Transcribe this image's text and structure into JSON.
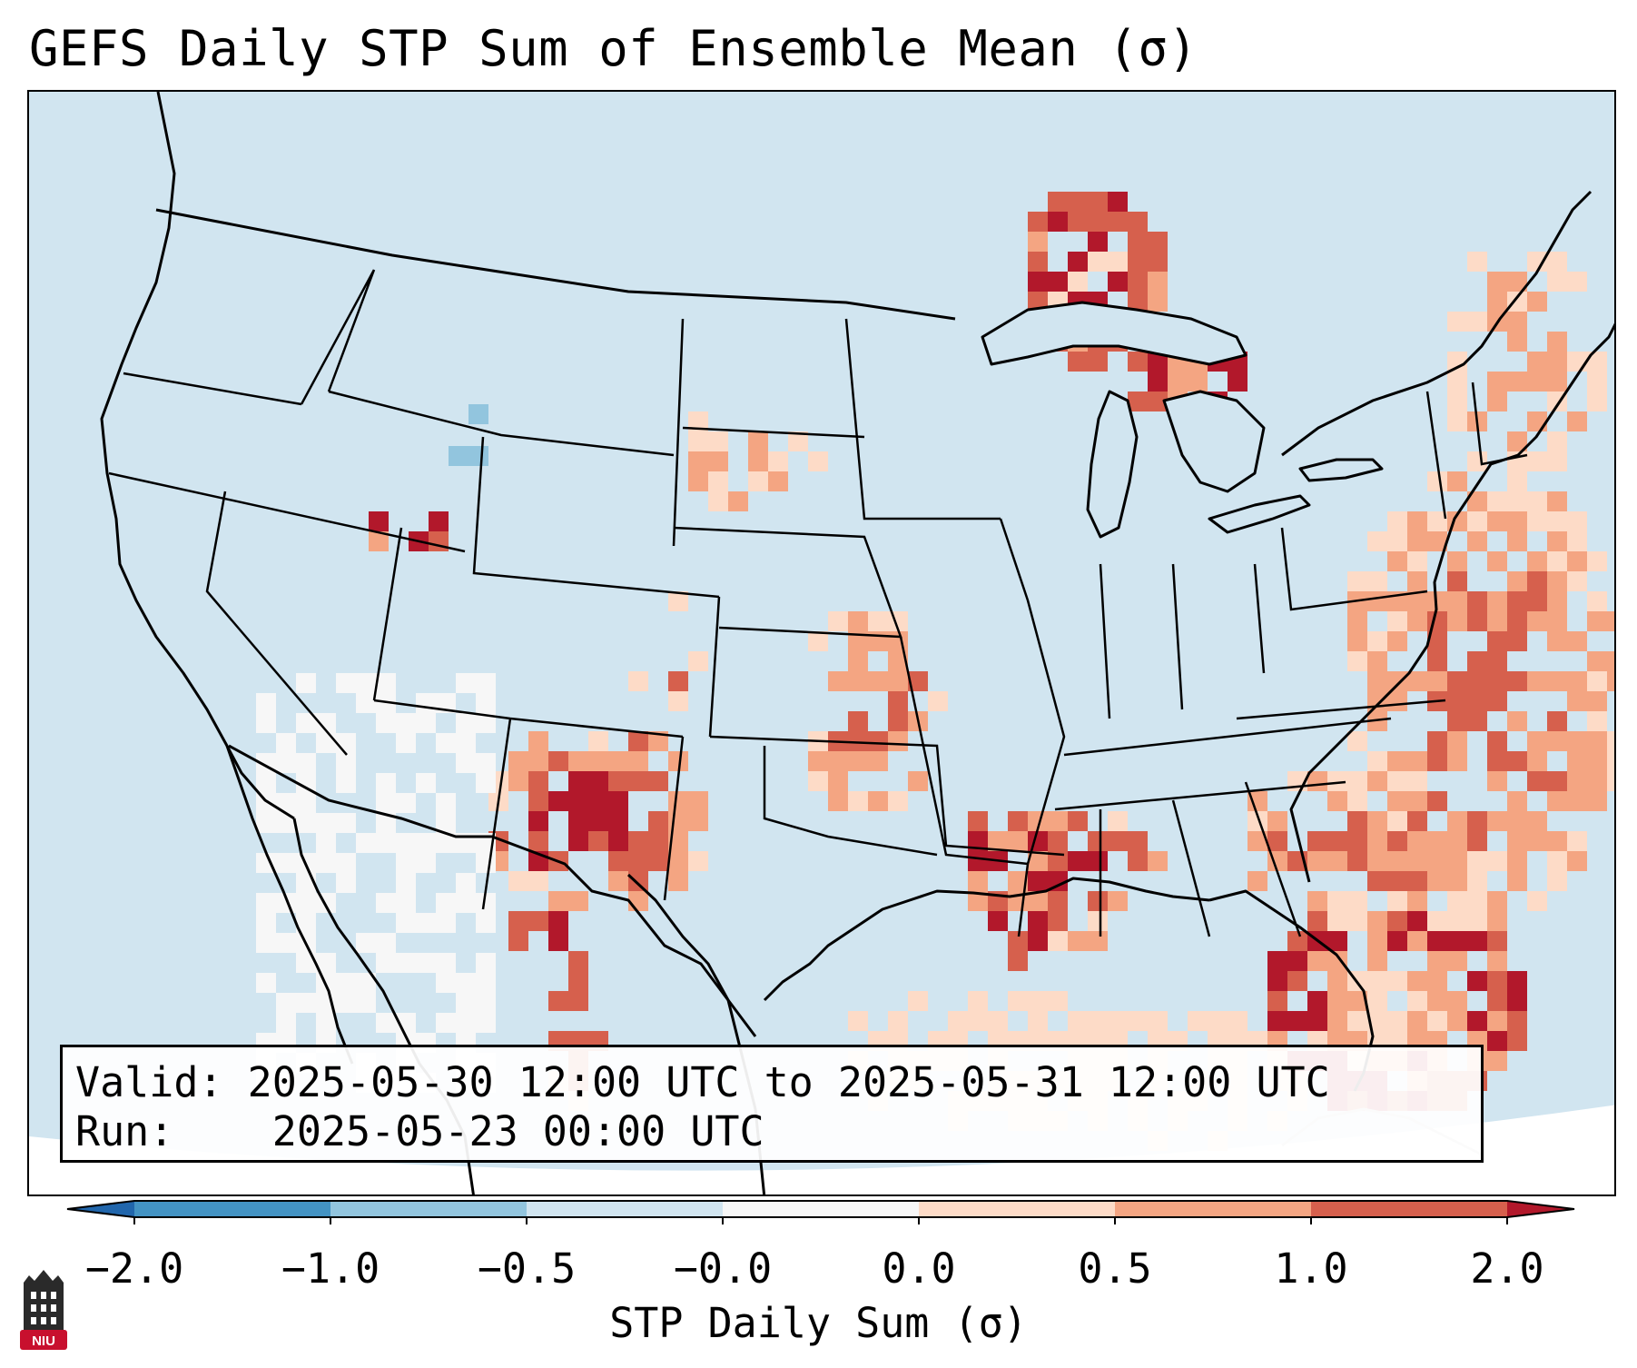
{
  "title": "GEFS Daily STP Sum of Ensemble Mean (σ)",
  "info": {
    "valid_label": "Valid:",
    "valid_text": "2025-05-30 12:00 UTC to 2025-05-31 12:00 UTC",
    "run_label": "Run:",
    "run_text": "2025-05-23 00:00 UTC"
  },
  "colorbar": {
    "label": "STP Daily Sum (σ)",
    "ticks": [
      "−2.0",
      "−1.0",
      "−0.5",
      "−0.0",
      "0.0",
      "0.5",
      "1.0",
      "2.0"
    ],
    "bins": [
      {
        "range": "-2.0 to -1.0",
        "color": "#4393c3"
      },
      {
        "range": "-1.0 to -0.5",
        "color": "#92c5de"
      },
      {
        "range": "-0.5 to -0.0",
        "color": "#d1e5f0"
      },
      {
        "range": "-0.0 to 0.0",
        "color": "#f7f7f7"
      },
      {
        "range": "0.0 to 0.5",
        "color": "#fddbc7"
      },
      {
        "range": "0.5 to 1.0",
        "color": "#f4a582"
      },
      {
        "range": "1.0 to 2.0",
        "color": "#d6604d"
      }
    ],
    "under_color": "#2166ac",
    "over_color": "#b2182b"
  },
  "logo": {
    "text": "NIU",
    "color": "#c8102e"
  },
  "map_colors": {
    "background": "#d1e5f0",
    "outside": "#ffffff",
    "border": "#000000"
  }
}
